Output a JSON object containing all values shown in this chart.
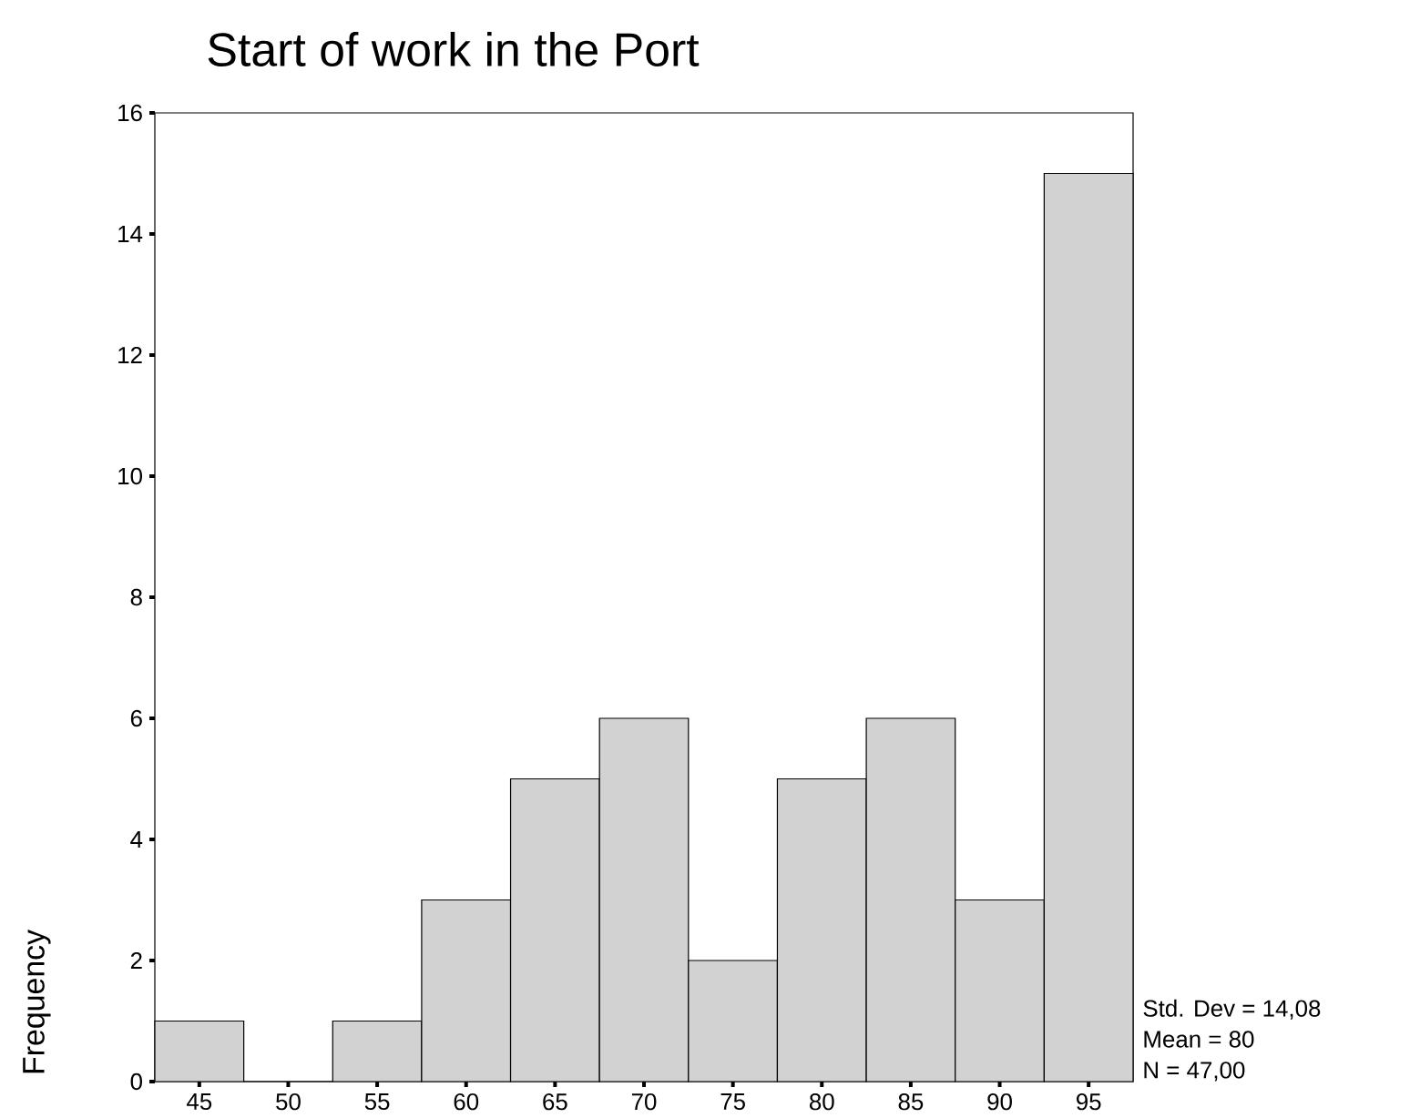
{
  "chart_data": {
    "type": "histogram",
    "title": "Start of work in the Port",
    "ylabel": "Frequency",
    "bins": [
      42.5,
      47.5,
      52.5,
      57.5,
      62.5,
      67.5,
      72.5,
      77.5,
      82.5,
      87.5,
      92.5,
      97.5
    ],
    "values": [
      1,
      0,
      1,
      3,
      5,
      6,
      2,
      5,
      6,
      3,
      15
    ],
    "color": "#d2d2d2",
    "xlim": [
      42.5,
      97.5
    ],
    "xticks": [
      45,
      50,
      55,
      60,
      65,
      70,
      75,
      80,
      85,
      90,
      95
    ],
    "ylim": [
      0,
      16
    ],
    "yticks": [
      0,
      2,
      4,
      6,
      8,
      10,
      12,
      14,
      16
    ],
    "annotations": [
      "Std. Dev = 14,08",
      "Mean = 80",
      "N = 47,00"
    ]
  }
}
